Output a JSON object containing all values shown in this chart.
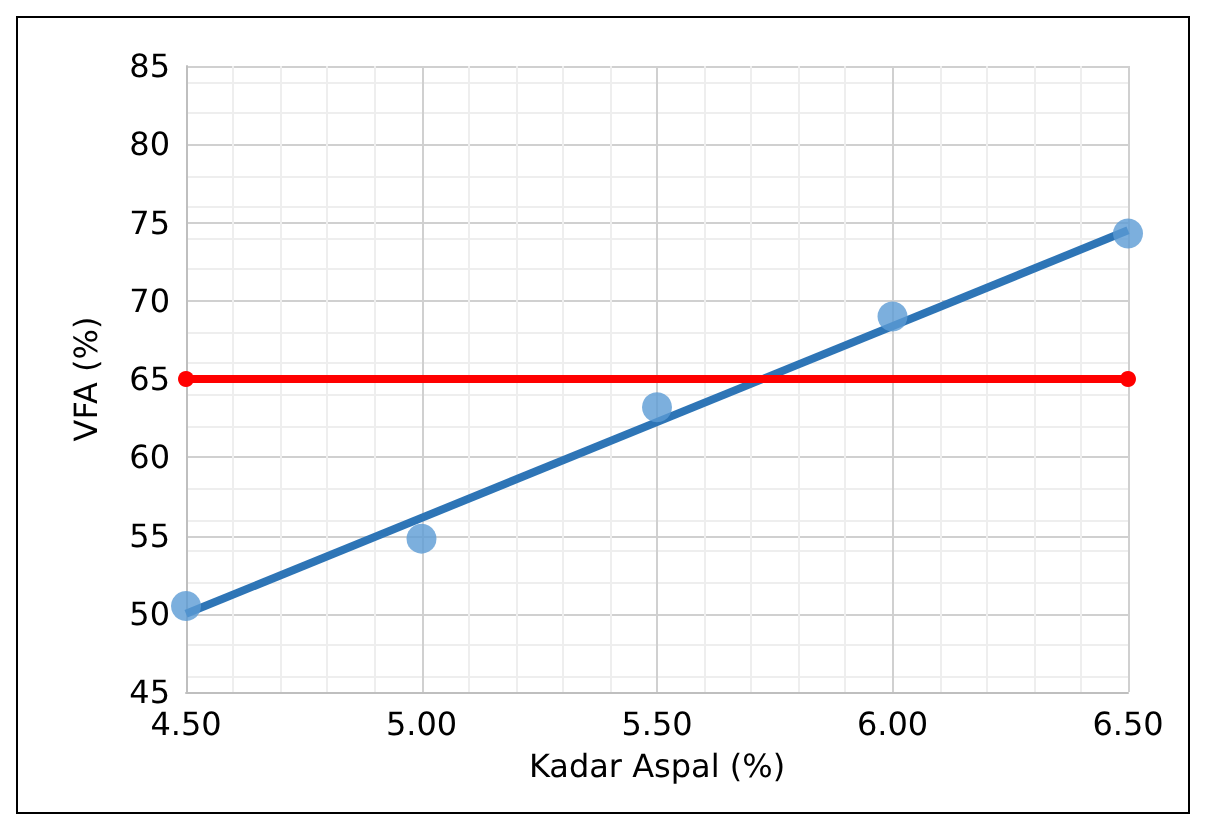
{
  "chart_data": {
    "type": "scatter",
    "xlabel": "Kadar Aspal (%)",
    "ylabel": "VFA (%)",
    "xlim": [
      4.5,
      6.5
    ],
    "xticks": [
      {
        "value": 4.5,
        "label": "4.50"
      },
      {
        "value": 5,
        "label": "5.00"
      },
      {
        "value": 5.5,
        "label": "5.50"
      },
      {
        "value": 6,
        "label": "6.00"
      },
      {
        "value": 6.5,
        "label": "6.50"
      }
    ],
    "ylim": [
      45,
      85
    ],
    "yticks": [
      45,
      50,
      55,
      60,
      65,
      70,
      75,
      80,
      85
    ],
    "x": [
      4.5,
      5,
      5.5,
      6,
      6.5
    ],
    "series": [
      {
        "color": "#5b9bd5",
        "values": [
          50.5,
          54.8,
          63.2,
          69.0,
          74.3
        ]
      },
      {
        "type": "line",
        "color": "#2e75b6",
        "values": [
          50.0,
          null,
          null,
          null,
          74.5
        ],
        "marker": "none"
      },
      {
        "type": "line",
        "color": "#ff0000",
        "values": [
          65,
          null,
          null,
          null,
          65
        ],
        "marker": "circle"
      }
    ],
    "grid": true,
    "marker": "circle"
  }
}
